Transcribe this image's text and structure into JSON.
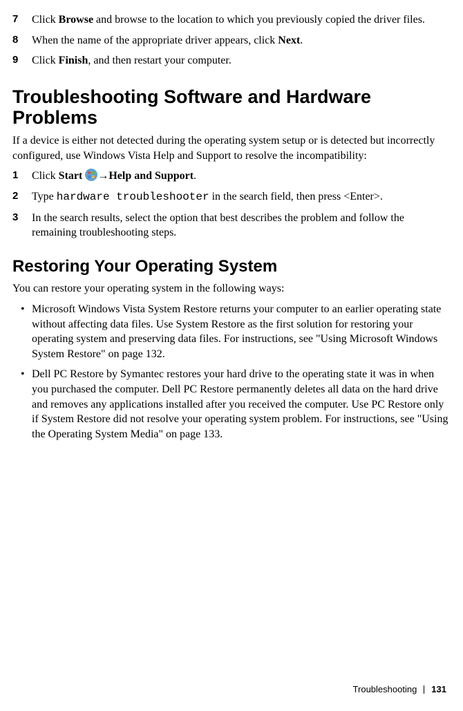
{
  "steps_top": [
    {
      "num": "7",
      "html": "Click <b>Browse</b> and browse to the location to which you previously copied the driver files."
    },
    {
      "num": "8",
      "html": "When the name of the appropriate driver appears, click <b>Next</b>."
    },
    {
      "num": "9",
      "html": "Click <b>Finish</b>, and then restart your computer."
    }
  ],
  "h1": "Troubleshooting Software and Hardware Problems",
  "intro1": "If a device is either not detected during the operating system setup or is detected but incorrectly configured, use Windows Vista Help and Support to resolve the incompatibility:",
  "steps_mid": [
    {
      "num": "1",
      "prefix": "Click ",
      "bold1": "Start ",
      "icon": true,
      "arrow": "→",
      "bold2": "Help and Support",
      "suffix": "."
    },
    {
      "num": "2",
      "prefix": "Type ",
      "mono": "hardware troubleshooter",
      "suffix": " in the search field, then press <Enter>."
    },
    {
      "num": "3",
      "text": "In the search results, select the option that best describes the problem and follow the remaining troubleshooting steps."
    }
  ],
  "h2": "Restoring Your Operating System",
  "intro2": "You can restore your operating system in the following ways:",
  "bullets": [
    "Microsoft Windows Vista System Restore returns your computer to an earlier operating state without affecting data files. Use System Restore as the first solution for restoring your operating system and preserving data files. For instructions, see \"Using Microsoft Windows System Restore\" on page 132.",
    "Dell PC Restore by Symantec restores your hard drive to the operating state it was in when you purchased the computer. Dell PC Restore permanently deletes all data on the hard drive and removes any applications installed after you received the computer. Use PC Restore only if System Restore did not resolve your operating system problem. For instructions, see \"Using the Operating System Media\" on page 133."
  ],
  "footer": {
    "label": "Troubleshooting",
    "page": "131"
  }
}
